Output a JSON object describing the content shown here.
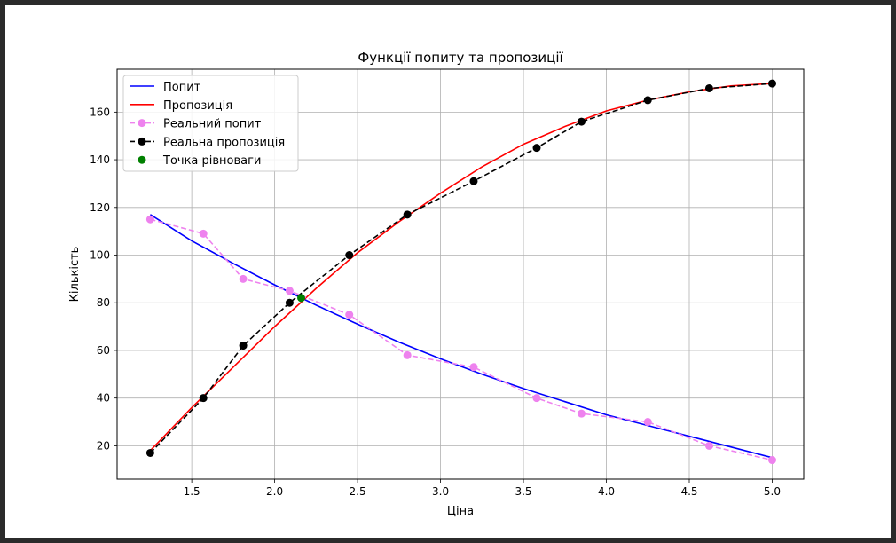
{
  "chart_data": {
    "type": "line",
    "title": "Функції попиту та пропозиції",
    "xlabel": "Ціна",
    "ylabel": "Кількість",
    "xlim": [
      1.05,
      5.19
    ],
    "ylim": [
      6,
      178
    ],
    "xticks": [
      "1.5",
      "2.0",
      "2.5",
      "3.0",
      "3.5",
      "4.0",
      "4.5",
      "5.0"
    ],
    "xtick_values": [
      1.5,
      2.0,
      2.5,
      3.0,
      3.5,
      4.0,
      4.5,
      5.0
    ],
    "yticks": [
      "20",
      "40",
      "60",
      "80",
      "100",
      "120",
      "140",
      "160"
    ],
    "ytick_values": [
      20,
      40,
      60,
      80,
      100,
      120,
      140,
      160
    ],
    "grid": true,
    "legend_position": "top-left",
    "series": [
      {
        "name": "Попит",
        "style": "solid",
        "color": "#0000ff",
        "x": [
          1.25,
          1.5,
          1.75,
          2.0,
          2.25,
          2.5,
          2.75,
          3.0,
          3.25,
          3.5,
          3.75,
          4.0,
          4.25,
          4.5,
          4.75,
          5.0
        ],
        "y": [
          117,
          106,
          96.5,
          87.5,
          79,
          71,
          63.5,
          56.5,
          50,
          44,
          38.5,
          33,
          28.5,
          24,
          19.5,
          15
        ]
      },
      {
        "name": "Пропозиція",
        "style": "solid",
        "color": "#ff0000",
        "x": [
          1.25,
          1.5,
          1.75,
          2.0,
          2.25,
          2.5,
          2.75,
          3.0,
          3.25,
          3.5,
          3.75,
          4.0,
          4.25,
          4.5,
          4.75,
          5.0
        ],
        "y": [
          18,
          36,
          53,
          70,
          86,
          101,
          114,
          126,
          137,
          146.5,
          154,
          160.5,
          165,
          168.5,
          171,
          172
        ]
      },
      {
        "name": "Реальний попит",
        "style": "dashed-markers",
        "color": "#ee82ee",
        "x": [
          1.25,
          1.57,
          1.81,
          2.09,
          2.45,
          2.8,
          3.2,
          3.58,
          3.85,
          4.25,
          4.62,
          5.0
        ],
        "y": [
          115,
          109,
          90,
          85,
          75,
          58,
          53,
          40,
          33.5,
          30,
          20,
          14
        ]
      },
      {
        "name": "Реальна пропозиція",
        "style": "dashed-markers",
        "color": "#000000",
        "x": [
          1.25,
          1.57,
          1.81,
          2.09,
          2.45,
          2.8,
          3.2,
          3.58,
          3.85,
          4.25,
          4.62,
          5.0
        ],
        "y": [
          17,
          40,
          62,
          80,
          100,
          117,
          131,
          145,
          156,
          165,
          170,
          172
        ]
      },
      {
        "name": "Точка рівноваги",
        "style": "marker",
        "color": "#008000",
        "x": [
          2.16
        ],
        "y": [
          82
        ]
      }
    ]
  }
}
